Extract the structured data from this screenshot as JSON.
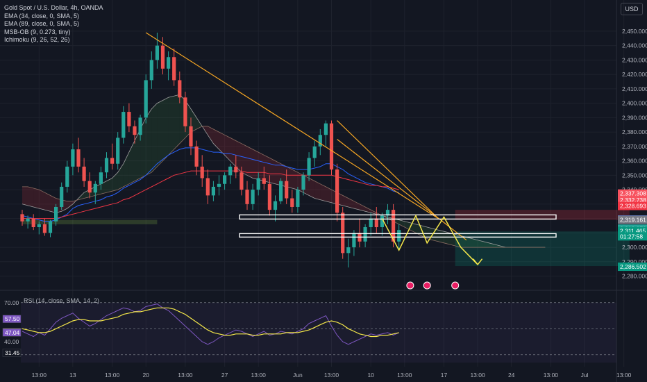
{
  "legend": {
    "title": "Gold Spot / U.S. Dollar, 4h, OANDA",
    "indicators": [
      "EMA (34, close, 0, SMA, 5)",
      "EMA (89, close, 0, SMA, 5)",
      "MSB-OB (9, 0.273, tiny)",
      "Ichimoku (9, 26, 52, 26)"
    ]
  },
  "currency": "USD",
  "rsi": {
    "label": "RSI (14, close, SMA, 14, 2)",
    "levels": [
      "70.00",
      "40.00"
    ],
    "markers": [
      {
        "label": "57.50",
        "value": 57.5,
        "color": "#7e57c2"
      },
      {
        "label": "47.44",
        "value": 47.44,
        "color": "#f5e84a"
      },
      {
        "label": "47.04",
        "value": 47.04,
        "color": "#7e57c2"
      },
      {
        "label": "31.45",
        "value": 31.45,
        "color": "#131722"
      }
    ],
    "ylim": [
      24,
      72
    ]
  },
  "chart_data": {
    "type": "candlestick",
    "title": "Gold Spot / U.S. Dollar, 4h, OANDA",
    "ylim": [
      2274,
      2462
    ],
    "yticks": [
      "2,450.000",
      "2,440.000",
      "2,430.000",
      "2,420.000",
      "2,410.000",
      "2,400.000",
      "2,390.000",
      "2,380.000",
      "2,370.000",
      "2,360.000",
      "2,350.000",
      "2,340.000",
      "2,330.000",
      "2,320.000",
      "2,310.000",
      "2,300.000",
      "2,290.000",
      "2,280.000"
    ],
    "ytick_values": [
      2450,
      2440,
      2430,
      2420,
      2410,
      2400,
      2390,
      2380,
      2370,
      2360,
      2350,
      2340,
      2330,
      2320,
      2310,
      2300,
      2290,
      2280
    ],
    "xticks": [
      "13:00",
      "13",
      "13:00",
      "20",
      "13:00",
      "27",
      "13:00",
      "Jun",
      "13:00",
      "10",
      "13:00",
      "17",
      "13:00",
      "24",
      "13:00",
      "Jul",
      "13:00"
    ],
    "xtick_index": [
      3,
      9,
      16,
      22,
      29,
      36,
      42,
      49,
      55,
      62,
      68,
      75,
      81,
      87,
      94,
      100,
      107
    ],
    "price_labels": [
      {
        "label": "2,337.308",
        "value": 2337.308,
        "color": "#f7525f"
      },
      {
        "label": "2,332.738",
        "value": 2332.738,
        "color": "#f7525f"
      },
      {
        "label": "2,328.693",
        "value": 2328.693,
        "color": "#f23645"
      },
      {
        "label": "2,319.302",
        "value": 2319.302,
        "color": "#2962ff"
      },
      {
        "label": "2,319.161",
        "value": 2319.161,
        "color": "#787b86"
      },
      {
        "label": "2,312.973",
        "value": 2312.973,
        "color": "#26a69a"
      },
      {
        "label": "2,311.465",
        "value": 2311.465,
        "color": "#089981"
      },
      {
        "label": "01:27:58",
        "value": 2307.6,
        "color": "#089981"
      },
      {
        "label": "2,286.502",
        "value": 2286.502,
        "color": "#089981"
      }
    ],
    "candles": [
      [
        2323,
        2326,
        2315,
        2318
      ],
      [
        2318,
        2322,
        2313,
        2320
      ],
      [
        2320,
        2323,
        2312,
        2314
      ],
      [
        2314,
        2318,
        2309,
        2316
      ],
      [
        2316,
        2320,
        2308,
        2310
      ],
      [
        2310,
        2319,
        2307,
        2318
      ],
      [
        2318,
        2330,
        2315,
        2328
      ],
      [
        2328,
        2345,
        2326,
        2342
      ],
      [
        2342,
        2360,
        2338,
        2356
      ],
      [
        2356,
        2372,
        2350,
        2368
      ],
      [
        2368,
        2376,
        2352,
        2356
      ],
      [
        2356,
        2362,
        2342,
        2346
      ],
      [
        2346,
        2352,
        2334,
        2338
      ],
      [
        2338,
        2346,
        2330,
        2344
      ],
      [
        2344,
        2356,
        2340,
        2352
      ],
      [
        2352,
        2366,
        2348,
        2362
      ],
      [
        2362,
        2372,
        2354,
        2358
      ],
      [
        2358,
        2380,
        2354,
        2376
      ],
      [
        2376,
        2398,
        2372,
        2394
      ],
      [
        2394,
        2400,
        2380,
        2384
      ],
      [
        2384,
        2388,
        2372,
        2378
      ],
      [
        2378,
        2392,
        2374,
        2390
      ],
      [
        2390,
        2420,
        2386,
        2416
      ],
      [
        2416,
        2436,
        2410,
        2430
      ],
      [
        2430,
        2449,
        2424,
        2440
      ],
      [
        2440,
        2446,
        2420,
        2424
      ],
      [
        2424,
        2436,
        2416,
        2432
      ],
      [
        2432,
        2438,
        2412,
        2416
      ],
      [
        2416,
        2422,
        2400,
        2404
      ],
      [
        2404,
        2408,
        2380,
        2384
      ],
      [
        2384,
        2390,
        2364,
        2370
      ],
      [
        2370,
        2374,
        2350,
        2356
      ],
      [
        2356,
        2364,
        2342,
        2348
      ],
      [
        2348,
        2354,
        2330,
        2336
      ],
      [
        2336,
        2346,
        2332,
        2342
      ],
      [
        2342,
        2350,
        2336,
        2344
      ],
      [
        2344,
        2352,
        2340,
        2350
      ],
      [
        2350,
        2358,
        2344,
        2356
      ],
      [
        2356,
        2364,
        2348,
        2352
      ],
      [
        2352,
        2356,
        2336,
        2340
      ],
      [
        2340,
        2346,
        2326,
        2330
      ],
      [
        2330,
        2344,
        2326,
        2340
      ],
      [
        2340,
        2352,
        2336,
        2348
      ],
      [
        2348,
        2356,
        2340,
        2344
      ],
      [
        2344,
        2350,
        2322,
        2326
      ],
      [
        2326,
        2336,
        2318,
        2332
      ],
      [
        2332,
        2348,
        2330,
        2346
      ],
      [
        2346,
        2354,
        2330,
        2334
      ],
      [
        2334,
        2340,
        2324,
        2328
      ],
      [
        2328,
        2342,
        2324,
        2340
      ],
      [
        2340,
        2352,
        2336,
        2350
      ],
      [
        2350,
        2366,
        2346,
        2362
      ],
      [
        2362,
        2374,
        2356,
        2370
      ],
      [
        2370,
        2382,
        2364,
        2378
      ],
      [
        2378,
        2388,
        2370,
        2386
      ],
      [
        2386,
        2388,
        2350,
        2354
      ],
      [
        2354,
        2358,
        2318,
        2324
      ],
      [
        2324,
        2328,
        2292,
        2296
      ],
      [
        2296,
        2306,
        2286,
        2300
      ],
      [
        2300,
        2312,
        2294,
        2310
      ],
      [
        2310,
        2320,
        2300,
        2304
      ],
      [
        2304,
        2316,
        2300,
        2314
      ],
      [
        2314,
        2324,
        2308,
        2320
      ],
      [
        2320,
        2328,
        2310,
        2314
      ],
      [
        2314,
        2324,
        2308,
        2322
      ],
      [
        2322,
        2330,
        2316,
        2326
      ],
      [
        2326,
        2330,
        2300,
        2304
      ],
      [
        2304,
        2316,
        2298,
        2312
      ]
    ],
    "ema34": [
      2322,
      2321,
      2320,
      2319,
      2318,
      2318,
      2319,
      2321,
      2323,
      2327,
      2329,
      2330,
      2331,
      2332,
      2333,
      2335,
      2336,
      2338,
      2341,
      2343,
      2345,
      2347,
      2350,
      2354,
      2358,
      2361,
      2364,
      2366,
      2368,
      2369,
      2369,
      2369,
      2368,
      2367,
      2366,
      2366,
      2365,
      2365,
      2364,
      2363,
      2362,
      2361,
      2360,
      2359,
      2358,
      2357,
      2357,
      2356,
      2355,
      2354,
      2354,
      2354,
      2355,
      2356,
      2358,
      2358,
      2356,
      2354,
      2351,
      2349,
      2347,
      2345,
      2344,
      2343,
      2342,
      2341,
      2339,
      2338
    ],
    "ema89": [
      2320,
      2320,
      2320,
      2320,
      2320,
      2320,
      2320,
      2321,
      2322,
      2323,
      2324,
      2325,
      2326,
      2327,
      2328,
      2329,
      2330,
      2331,
      2333,
      2334,
      2336,
      2338,
      2340,
      2342,
      2344,
      2346,
      2348,
      2350,
      2351,
      2352,
      2353,
      2353,
      2353,
      2353,
      2353,
      2353,
      2353,
      2353,
      2353,
      2353,
      2352,
      2352,
      2352,
      2352,
      2351,
      2351,
      2351,
      2350,
      2350,
      2350,
      2350,
      2350,
      2350,
      2350,
      2350,
      2350,
      2349,
      2348,
      2347,
      2346,
      2345,
      2344,
      2343,
      2343,
      2342,
      2342,
      2341,
      2340
    ],
    "cloud_a": [
      2330,
      2329,
      2328,
      2327,
      2326,
      2325,
      2324,
      2325,
      2327,
      2330,
      2334,
      2338,
      2340,
      2342,
      2344,
      2346,
      2348,
      2352,
      2358,
      2366,
      2374,
      2382,
      2390,
      2396,
      2400,
      2402,
      2404,
      2405,
      2406,
      2402,
      2396,
      2390,
      2384,
      2378,
      2372,
      2368,
      2364,
      2360,
      2356,
      2352,
      2350,
      2348,
      2347,
      2346,
      2345,
      2344,
      2343,
      2342,
      2341,
      2340,
      2338,
      2336,
      2334,
      2333,
      2332,
      2331,
      2330,
      2329,
      2328,
      2327,
      2326,
      2325,
      2324,
      2323,
      2322,
      2321,
      2320,
      2319,
      2318,
      2317,
      2316,
      2315,
      2314,
      2313,
      2312,
      2311,
      2310,
      2309,
      2308,
      2307,
      2306,
      2305,
      2304,
      2303,
      2302,
      2301,
      2300,
      2300,
      2300,
      2300,
      2300,
      2300,
      2300,
      2300
    ],
    "cloud_b": [
      2342,
      2342,
      2341,
      2340,
      2338,
      2336,
      2334,
      2333,
      2332,
      2332,
      2333,
      2334,
      2335,
      2336,
      2337,
      2338,
      2339,
      2340,
      2342,
      2344,
      2346,
      2348,
      2350,
      2352,
      2356,
      2360,
      2364,
      2368,
      2372,
      2376,
      2380,
      2382,
      2384,
      2384,
      2382,
      2380,
      2378,
      2376,
      2374,
      2372,
      2370,
      2368,
      2366,
      2364,
      2362,
      2360,
      2358,
      2356,
      2354,
      2352,
      2350,
      2348,
      2346,
      2344,
      2342,
      2340,
      2338,
      2336,
      2334,
      2332,
      2330,
      2328,
      2326,
      2324,
      2322,
      2320,
      2318,
      2316,
      2314,
      2312,
      2310,
      2308,
      2306,
      2305,
      2304,
      2303,
      2302,
      2301,
      2300,
      2300,
      2300,
      2300,
      2300,
      2300,
      2300,
      2300,
      2300,
      2300,
      2300,
      2300,
      2300,
      2300,
      2300,
      2300
    ],
    "zones": [
      {
        "from_index": 0,
        "to_index": 24,
        "low": 2316,
        "high": 2319,
        "color": "#8bc34a"
      },
      {
        "from_index": 77,
        "to_index": 108,
        "low": 2319,
        "high": 2326,
        "color": "#f23645"
      },
      {
        "from_index": 77,
        "to_index": 108,
        "low": 2287,
        "high": 2311,
        "color": "#089981"
      }
    ],
    "rsi_values": [
      48,
      46,
      44,
      47,
      45,
      50,
      55,
      58,
      60,
      62,
      58,
      55,
      52,
      54,
      57,
      60,
      62,
      64,
      66,
      65,
      63,
      64,
      67,
      68,
      69,
      66,
      64,
      60,
      56,
      52,
      48,
      44,
      40,
      38,
      40,
      43,
      45,
      47,
      49,
      48,
      46,
      44,
      46,
      48,
      45,
      46,
      48,
      47,
      46,
      48,
      50,
      54,
      56,
      58,
      60,
      52,
      45,
      40,
      38,
      40,
      42,
      44,
      46,
      45,
      46,
      47,
      45,
      47
    ],
    "rsi_ma": [
      50,
      49,
      48,
      47,
      47,
      48,
      50,
      52,
      54,
      56,
      57,
      57,
      56,
      56,
      56,
      57,
      58,
      59,
      61,
      62,
      63,
      63,
      64,
      65,
      66,
      66,
      66,
      65,
      63,
      61,
      58,
      55,
      52,
      49,
      47,
      46,
      45,
      45,
      46,
      46,
      46,
      45,
      45,
      46,
      46,
      46,
      46,
      47,
      47,
      47,
      48,
      49,
      51,
      53,
      55,
      56,
      55,
      53,
      50,
      48,
      46,
      45,
      44,
      44,
      45,
      45,
      46,
      47
    ]
  }
}
